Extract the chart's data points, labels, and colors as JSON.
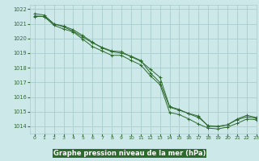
{
  "xlabel": "Graphe pression niveau de la mer (hPa)",
  "xlim": [
    -0.5,
    23
  ],
  "ylim": [
    1013.5,
    1022.3
  ],
  "yticks": [
    1014,
    1015,
    1016,
    1017,
    1018,
    1019,
    1020,
    1021,
    1022
  ],
  "xticks": [
    0,
    1,
    2,
    3,
    4,
    5,
    6,
    7,
    8,
    9,
    10,
    11,
    12,
    13,
    14,
    15,
    16,
    17,
    18,
    19,
    20,
    21,
    22,
    23
  ],
  "background_color": "#cce8e8",
  "grid_color": "#aacccc",
  "line_color": "#2d6a2d",
  "label_bg_color": "#2d6a2d",
  "label_text_color": "#ffffff",
  "series1_x": [
    0,
    1,
    2,
    3,
    4,
    5,
    6,
    7,
    8,
    9,
    10,
    11,
    12,
    13,
    14,
    15,
    16,
    17,
    18,
    19,
    20,
    21,
    22,
    23
  ],
  "series1_y": [
    1021.5,
    1021.5,
    1021.0,
    1020.8,
    1020.5,
    1020.1,
    1019.7,
    1019.4,
    1019.15,
    1019.1,
    1018.75,
    1018.45,
    1017.9,
    1017.35,
    1015.35,
    1015.15,
    1014.85,
    1014.6,
    1014.05,
    1013.98,
    1014.1,
    1014.45,
    1014.65,
    1014.55
  ],
  "series2_x": [
    0,
    1,
    2,
    3,
    4,
    5,
    6,
    7,
    8,
    9,
    10,
    11,
    12,
    13,
    14,
    15,
    16,
    17,
    18,
    19,
    20,
    21,
    22,
    23
  ],
  "series2_y": [
    1021.55,
    1021.5,
    1020.9,
    1020.65,
    1020.45,
    1019.95,
    1019.45,
    1019.15,
    1018.85,
    1018.85,
    1018.5,
    1018.2,
    1017.45,
    1016.85,
    1014.95,
    1014.8,
    1014.5,
    1014.15,
    1013.88,
    1013.82,
    1013.95,
    1014.2,
    1014.5,
    1014.45
  ],
  "series3_x": [
    0,
    1,
    2,
    3,
    4,
    5,
    6,
    7,
    8,
    9,
    10,
    11,
    12,
    13,
    14,
    15,
    16,
    17,
    18,
    19,
    20,
    21,
    22,
    23
  ],
  "series3_y": [
    1021.7,
    1021.6,
    1021.0,
    1020.85,
    1020.6,
    1020.2,
    1019.75,
    1019.35,
    1019.1,
    1019.0,
    1018.8,
    1018.5,
    1017.65,
    1017.0,
    1015.3,
    1015.1,
    1014.88,
    1014.7,
    1014.0,
    1014.0,
    1014.1,
    1014.5,
    1014.75,
    1014.6
  ]
}
